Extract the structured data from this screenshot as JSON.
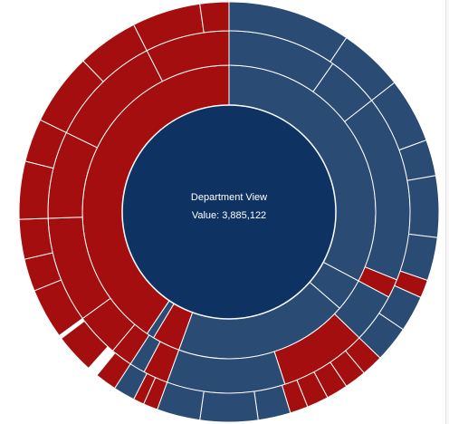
{
  "chart_data": {
    "type": "sunburst",
    "center": {
      "title": "Department View",
      "value_label": "Value: 3,885,122",
      "value": 3885122
    },
    "colors": {
      "center": "#0e3363",
      "blue": "#2a4b73",
      "red": "#a50e0e",
      "divider": "#ffffff"
    },
    "rings": [
      {
        "level": 1,
        "segments": [
          {
            "start_deg": 0,
            "end_deg": 118,
            "color": "blue"
          },
          {
            "start_deg": 118,
            "end_deg": 131,
            "color": "blue"
          },
          {
            "start_deg": 131,
            "end_deg": 200,
            "color": "blue"
          },
          {
            "start_deg": 200,
            "end_deg": 211,
            "color": "red"
          },
          {
            "start_deg": 211,
            "end_deg": 214,
            "color": "blue"
          },
          {
            "start_deg": 214,
            "end_deg": 360,
            "color": "red"
          }
        ]
      },
      {
        "level": 2,
        "segments": [
          {
            "start_deg": 0,
            "end_deg": 35,
            "color": "blue"
          },
          {
            "start_deg": 35,
            "end_deg": 52,
            "color": "blue"
          },
          {
            "start_deg": 52,
            "end_deg": 112,
            "color": "blue"
          },
          {
            "start_deg": 112,
            "end_deg": 118,
            "color": "red"
          },
          {
            "start_deg": 118,
            "end_deg": 134,
            "color": "blue"
          },
          {
            "start_deg": 134,
            "end_deg": 162,
            "color": "red"
          },
          {
            "start_deg": 162,
            "end_deg": 200,
            "color": "blue"
          },
          {
            "start_deg": 200,
            "end_deg": 208,
            "color": "red"
          },
          {
            "start_deg": 208,
            "end_deg": 213,
            "color": "blue"
          },
          {
            "start_deg": 213,
            "end_deg": 220,
            "color": "red"
          },
          {
            "start_deg": 220,
            "end_deg": 234,
            "color": "red"
          },
          {
            "start_deg": 234,
            "end_deg": 268,
            "color": "red"
          },
          {
            "start_deg": 268,
            "end_deg": 296,
            "color": "red"
          },
          {
            "start_deg": 296,
            "end_deg": 333,
            "color": "red"
          },
          {
            "start_deg": 333,
            "end_deg": 360,
            "color": "red"
          }
        ]
      },
      {
        "level": 3,
        "segments": [
          {
            "start_deg": 0,
            "end_deg": 34,
            "color": "blue"
          },
          {
            "start_deg": 34,
            "end_deg": 52,
            "color": "blue"
          },
          {
            "start_deg": 52,
            "end_deg": 70,
            "color": "blue"
          },
          {
            "start_deg": 70,
            "end_deg": 80,
            "color": "blue"
          },
          {
            "start_deg": 80,
            "end_deg": 97,
            "color": "blue"
          },
          {
            "start_deg": 97,
            "end_deg": 109,
            "color": "blue"
          },
          {
            "start_deg": 109,
            "end_deg": 114,
            "color": "red"
          },
          {
            "start_deg": 114,
            "end_deg": 124,
            "color": "blue"
          },
          {
            "start_deg": 124,
            "end_deg": 134,
            "color": "blue"
          },
          {
            "start_deg": 134,
            "end_deg": 140,
            "color": "red"
          },
          {
            "start_deg": 140,
            "end_deg": 146,
            "color": "red"
          },
          {
            "start_deg": 146,
            "end_deg": 152,
            "color": "red"
          },
          {
            "start_deg": 152,
            "end_deg": 158,
            "color": "red"
          },
          {
            "start_deg": 158,
            "end_deg": 163,
            "color": "red"
          },
          {
            "start_deg": 163,
            "end_deg": 172,
            "color": "blue"
          },
          {
            "start_deg": 172,
            "end_deg": 188,
            "color": "blue"
          },
          {
            "start_deg": 188,
            "end_deg": 200,
            "color": "blue"
          },
          {
            "start_deg": 200,
            "end_deg": 204,
            "color": "red"
          },
          {
            "start_deg": 204,
            "end_deg": 207,
            "color": "red"
          },
          {
            "start_deg": 207,
            "end_deg": 213,
            "color": "blue"
          },
          {
            "start_deg": 213,
            "end_deg": 219,
            "color": "red"
          },
          {
            "start_deg": 222,
            "end_deg": 233,
            "color": "red"
          },
          {
            "start_deg": 234,
            "end_deg": 248,
            "color": "red"
          },
          {
            "start_deg": 248,
            "end_deg": 257,
            "color": "red"
          },
          {
            "start_deg": 257,
            "end_deg": 268,
            "color": "red"
          },
          {
            "start_deg": 268,
            "end_deg": 284,
            "color": "red"
          },
          {
            "start_deg": 284,
            "end_deg": 296,
            "color": "red"
          },
          {
            "start_deg": 296,
            "end_deg": 316,
            "color": "red"
          },
          {
            "start_deg": 316,
            "end_deg": 333,
            "color": "red"
          },
          {
            "start_deg": 333,
            "end_deg": 352,
            "color": "red"
          },
          {
            "start_deg": 352,
            "end_deg": 360,
            "color": "red"
          }
        ]
      }
    ]
  }
}
